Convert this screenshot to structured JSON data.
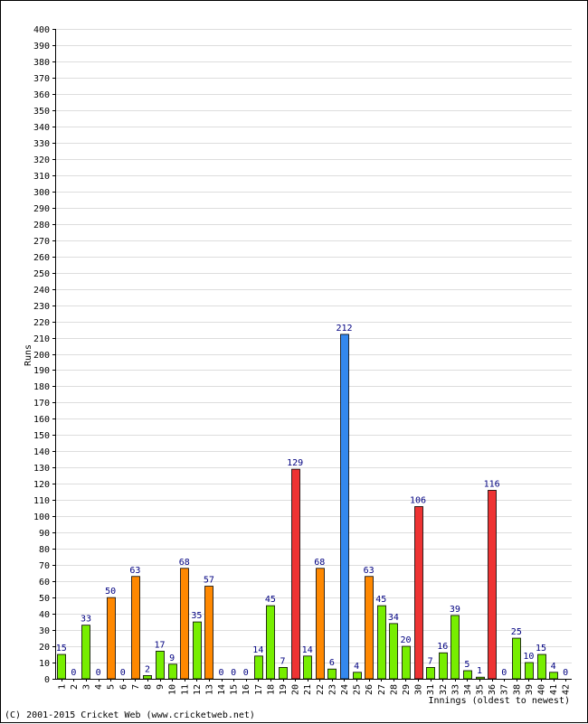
{
  "chart_data": {
    "type": "bar",
    "ylabel": "Runs",
    "xlabel": "Innings (oldest to newest)",
    "ylim": [
      0,
      400
    ],
    "y_ticks": [
      "0",
      "10",
      "20",
      "30",
      "40",
      "50",
      "60",
      "70",
      "80",
      "90",
      "100",
      "110",
      "120",
      "130",
      "140",
      "150",
      "160",
      "170",
      "180",
      "190",
      "200",
      "210",
      "220",
      "230",
      "240",
      "250",
      "260",
      "270",
      "280",
      "290",
      "300",
      "310",
      "320",
      "330",
      "340",
      "350",
      "360",
      "370",
      "380",
      "390",
      "400"
    ],
    "grid": true,
    "categories": [
      "1",
      "2",
      "3",
      "4",
      "5",
      "6",
      "7",
      "8",
      "9",
      "10",
      "11",
      "12",
      "13",
      "14",
      "15",
      "16",
      "17",
      "18",
      "19",
      "20",
      "21",
      "22",
      "23",
      "24",
      "25",
      "26",
      "27",
      "28",
      "29",
      "30",
      "31",
      "32",
      "33",
      "34",
      "35",
      "36",
      "37",
      "38",
      "39",
      "40",
      "41",
      "42"
    ],
    "values": [
      15,
      0,
      33,
      0,
      50,
      0,
      63,
      2,
      17,
      9,
      68,
      35,
      57,
      0,
      0,
      0,
      14,
      45,
      7,
      129,
      14,
      68,
      6,
      212,
      4,
      63,
      45,
      34,
      20,
      106,
      7,
      16,
      39,
      5,
      1,
      116,
      0,
      25,
      10,
      15,
      4,
      0
    ],
    "bar_colors": [
      "#77ee00",
      "#77ee00",
      "#77ee00",
      "#77ee00",
      "#ff8800",
      "#77ee00",
      "#ff8800",
      "#77ee00",
      "#77ee00",
      "#77ee00",
      "#ff8800",
      "#77ee00",
      "#ff8800",
      "#77ee00",
      "#77ee00",
      "#77ee00",
      "#77ee00",
      "#77ee00",
      "#77ee00",
      "#ee3333",
      "#77ee00",
      "#ff8800",
      "#77ee00",
      "#3388ee",
      "#77ee00",
      "#ff8800",
      "#77ee00",
      "#77ee00",
      "#77ee00",
      "#ee3333",
      "#77ee00",
      "#77ee00",
      "#77ee00",
      "#77ee00",
      "#77ee00",
      "#ee3333",
      "#77ee00",
      "#77ee00",
      "#77ee00",
      "#77ee00",
      "#77ee00",
      "#77ee00"
    ],
    "value_label_color": "#000080"
  },
  "footer": {
    "copyright": "(C) 2001-2015 Cricket Web (www.cricketweb.net)"
  }
}
